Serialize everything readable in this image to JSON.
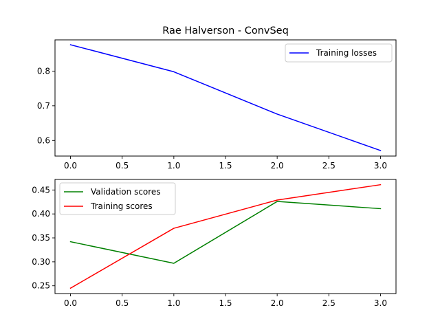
{
  "chart_data": [
    {
      "type": "line",
      "title": "Rae Halverson - ConvSeq",
      "xlabel": "",
      "ylabel": "",
      "x": [
        0,
        1,
        2,
        3
      ],
      "xlim": [
        -0.15,
        3.15
      ],
      "ylim": [
        0.555,
        0.89
      ],
      "xticks": [
        0.0,
        0.5,
        1.0,
        1.5,
        2.0,
        2.5,
        3.0
      ],
      "xtick_labels": [
        "0.0",
        "0.5",
        "1.0",
        "1.5",
        "2.0",
        "2.5",
        "3.0"
      ],
      "yticks": [
        0.6,
        0.7,
        0.8
      ],
      "ytick_labels": [
        "0.6",
        "0.7",
        "0.8"
      ],
      "grid": false,
      "legend_position": "upper right",
      "series": [
        {
          "name": "Training losses",
          "color": "#0000ff",
          "values": [
            0.876,
            0.798,
            0.676,
            0.571
          ]
        }
      ]
    },
    {
      "type": "line",
      "title": "",
      "xlabel": "",
      "ylabel": "",
      "x": [
        0,
        1,
        2,
        3
      ],
      "xlim": [
        -0.15,
        3.15
      ],
      "ylim": [
        0.2338,
        0.472
      ],
      "xticks": [
        0.0,
        0.5,
        1.0,
        1.5,
        2.0,
        2.5,
        3.0
      ],
      "xtick_labels": [
        "0.0",
        "0.5",
        "1.0",
        "1.5",
        "2.0",
        "2.5",
        "3.0"
      ],
      "yticks": [
        0.25,
        0.3,
        0.35,
        0.4,
        0.45
      ],
      "ytick_labels": [
        "0.25",
        "0.30",
        "0.35",
        "0.40",
        "0.45"
      ],
      "grid": false,
      "legend_position": "upper left",
      "series": [
        {
          "name": "Validation scores",
          "color": "#008000",
          "values": [
            0.342,
            0.297,
            0.426,
            0.411
          ]
        },
        {
          "name": "Training scores",
          "color": "#ff0000",
          "values": [
            0.245,
            0.37,
            0.429,
            0.461
          ]
        }
      ]
    }
  ]
}
